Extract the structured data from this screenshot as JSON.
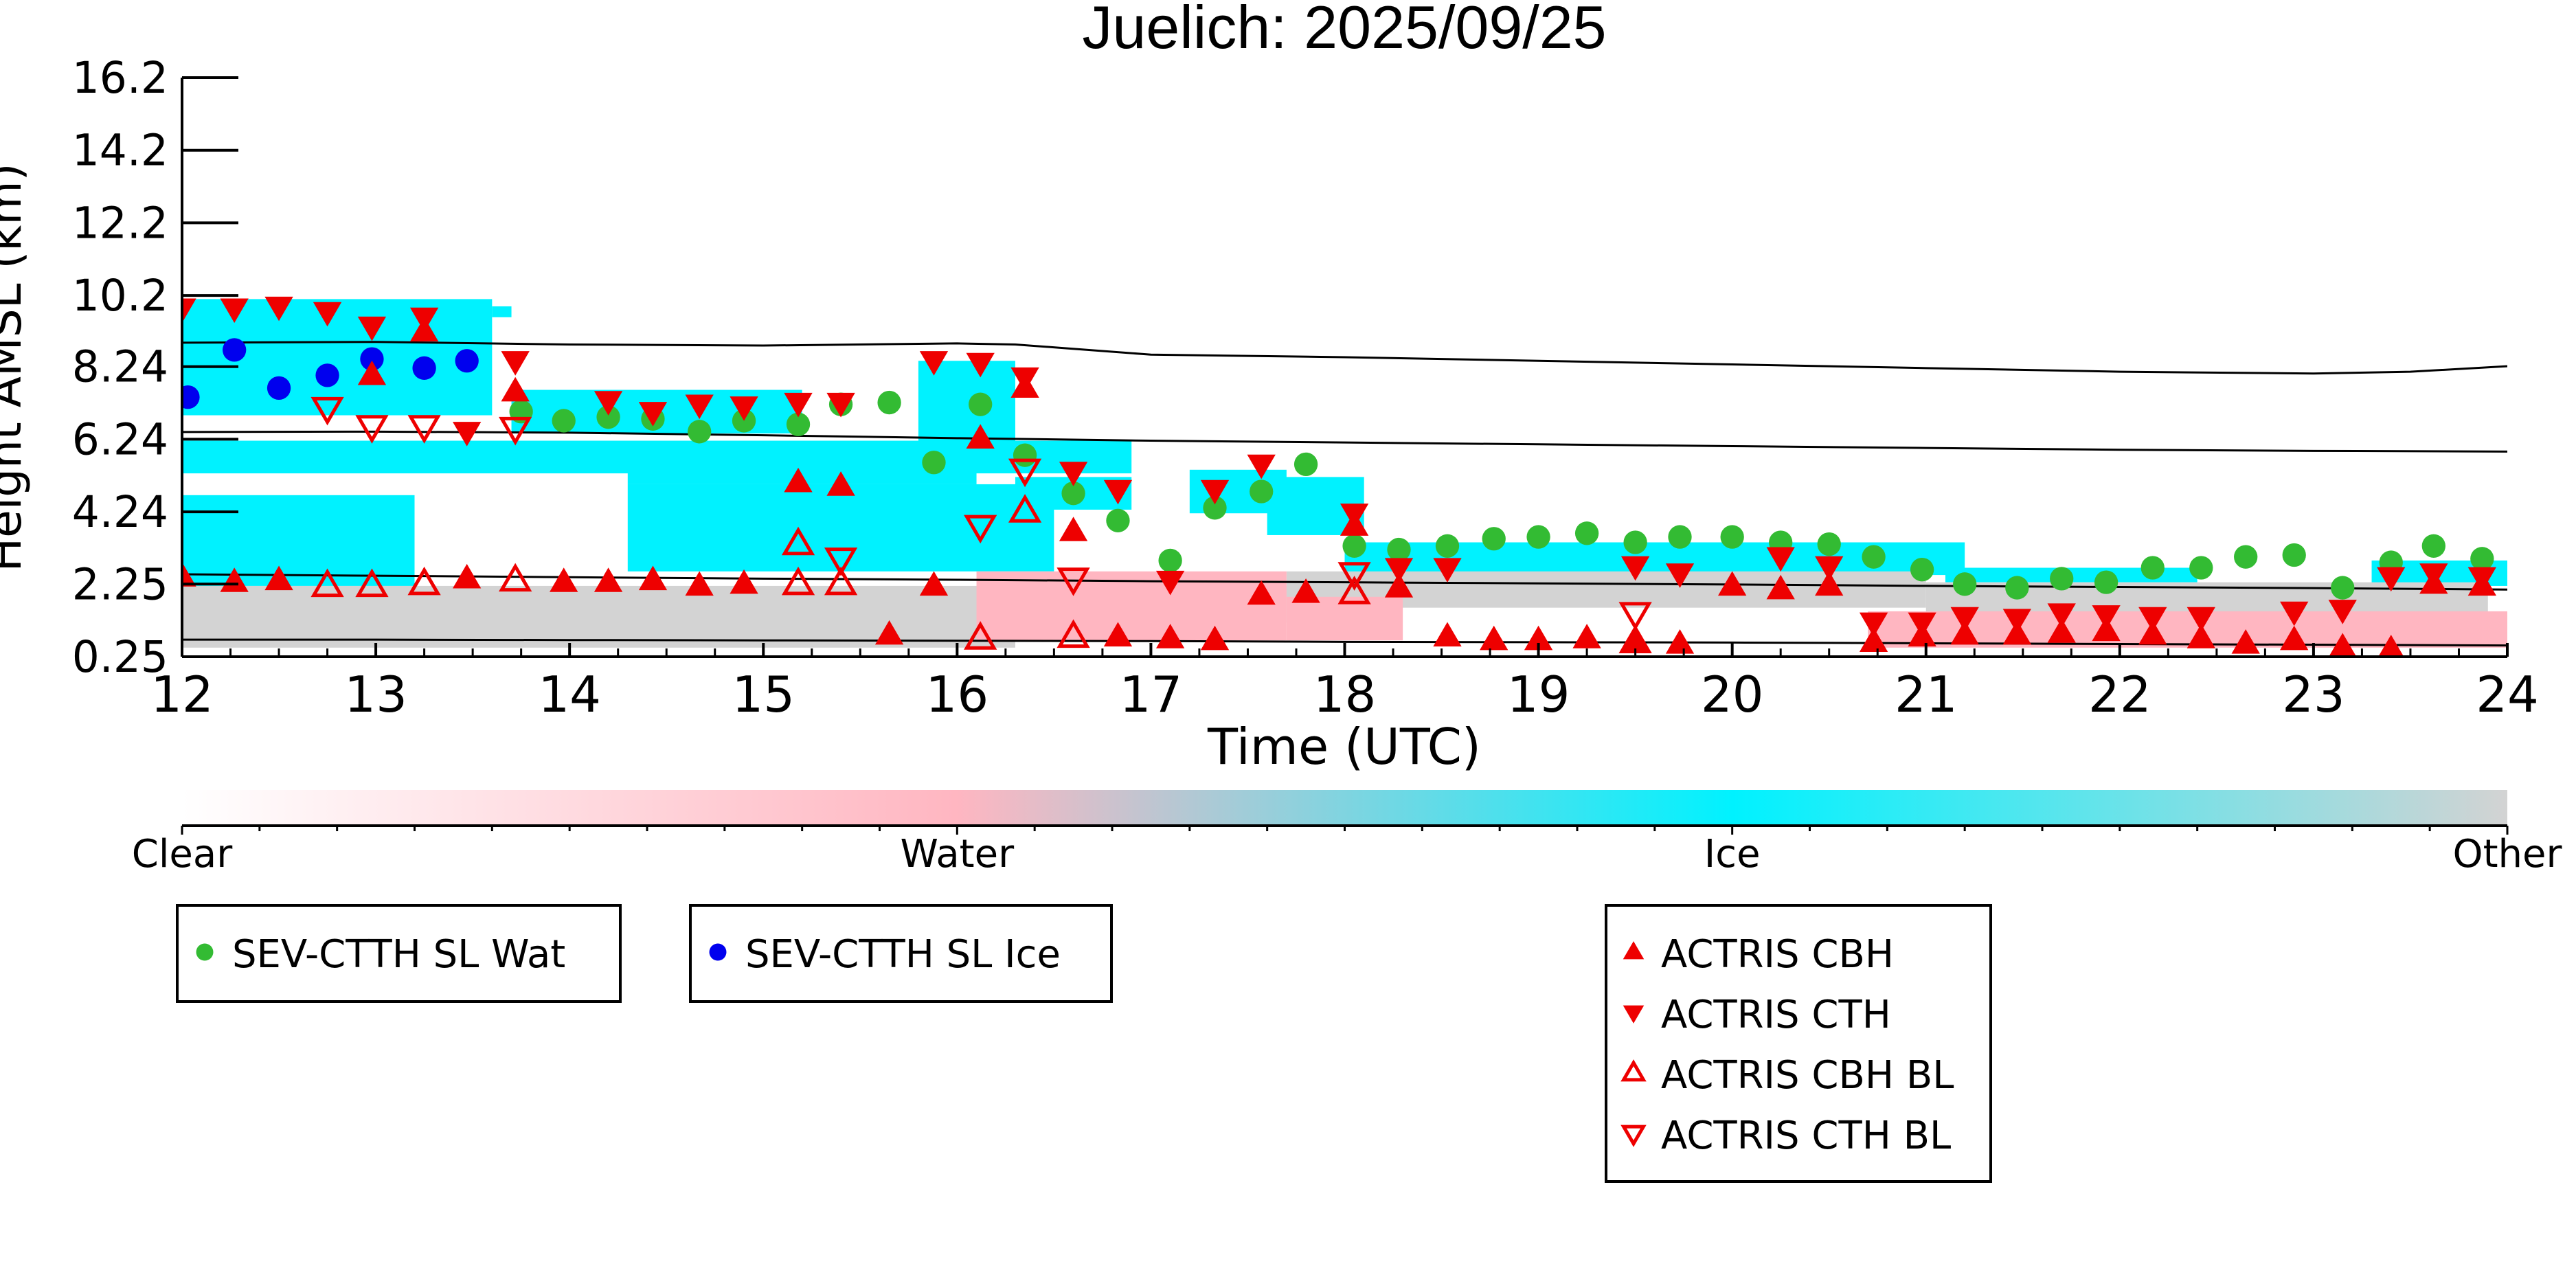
{
  "chart_data": {
    "type": "scatter",
    "title": "Juelich: 2025/09/25",
    "xlabel": "Time (UTC)",
    "ylabel": "Height AMSL (km)",
    "xlim": [
      12,
      24
    ],
    "ylim": [
      0.25,
      16.2
    ],
    "x_ticks": [
      12,
      13,
      14,
      15,
      16,
      17,
      18,
      19,
      20,
      21,
      22,
      23,
      24
    ],
    "y_ticks": [
      "0.25",
      "2.25",
      "4.24",
      "6.24",
      "8.24",
      "10.2",
      "12.2",
      "14.2",
      "16.2"
    ],
    "grid": false,
    "colorbar": {
      "labels": [
        "Clear",
        "Water",
        "Ice",
        "Other"
      ],
      "colors": [
        "#ffffff",
        "#ffb6c1",
        "#00f2ff",
        "#d3d3d3"
      ]
    },
    "background_classification": {
      "ice": [
        [
          12.0,
          2.2,
          13.2,
          4.7
        ],
        [
          12.0,
          5.3,
          16.9,
          6.2
        ],
        [
          12.0,
          6.9,
          13.6,
          10.1
        ],
        [
          13.6,
          9.6,
          13.7,
          9.9
        ],
        [
          13.7,
          6.4,
          15.2,
          7.6
        ],
        [
          14.3,
          5.0,
          16.1,
          6.0
        ],
        [
          15.8,
          6.0,
          16.3,
          8.4
        ],
        [
          14.3,
          2.6,
          16.5,
          5.0
        ],
        [
          16.3,
          4.3,
          16.9,
          5.2
        ],
        [
          17.2,
          4.2,
          17.7,
          5.4
        ],
        [
          17.6,
          3.6,
          18.1,
          5.2
        ],
        [
          18.0,
          2.5,
          21.2,
          3.4
        ],
        [
          21.1,
          2.3,
          22.4,
          2.7
        ],
        [
          23.3,
          2.2,
          24.0,
          2.9
        ]
      ],
      "other": [
        [
          12.0,
          0.5,
          16.3,
          2.2
        ],
        [
          16.3,
          1.2,
          17.7,
          2.2
        ],
        [
          17.7,
          1.6,
          21.0,
          2.6
        ],
        [
          21.0,
          0.9,
          23.9,
          2.3
        ]
      ],
      "water": [
        [
          16.1,
          0.7,
          17.7,
          2.6
        ],
        [
          17.7,
          0.7,
          18.3,
          1.9
        ],
        [
          20.7,
          0.5,
          24.0,
          1.5
        ]
      ]
    },
    "reference_lines": [
      {
        "x": [
          12,
          13,
          14,
          15,
          16,
          16.3,
          17,
          18,
          19,
          20,
          21,
          22,
          23,
          23.5,
          24
        ],
        "y": [
          8.9,
          8.92,
          8.85,
          8.82,
          8.88,
          8.85,
          8.57,
          8.5,
          8.4,
          8.3,
          8.2,
          8.1,
          8.05,
          8.1,
          8.25
        ]
      },
      {
        "x": [
          12,
          13,
          14,
          15,
          16,
          17,
          18,
          19,
          20,
          21,
          22,
          23,
          24
        ],
        "y": [
          6.44,
          6.45,
          6.42,
          6.35,
          6.27,
          6.2,
          6.15,
          6.1,
          6.05,
          6.0,
          5.95,
          5.92,
          5.9
        ]
      },
      {
        "x": [
          12,
          13,
          14,
          15,
          16,
          17,
          18,
          19,
          20,
          21,
          22,
          23,
          24
        ],
        "y": [
          2.52,
          2.48,
          2.44,
          2.4,
          2.37,
          2.33,
          2.3,
          2.27,
          2.24,
          2.2,
          2.17,
          2.14,
          2.1
        ]
      },
      {
        "x": [
          12,
          13,
          14,
          15,
          16,
          17,
          18,
          19,
          20,
          21,
          22,
          23,
          24
        ],
        "y": [
          0.72,
          0.72,
          0.71,
          0.7,
          0.69,
          0.68,
          0.66,
          0.65,
          0.64,
          0.62,
          0.6,
          0.58,
          0.56
        ]
      }
    ],
    "series": [
      {
        "name": "SEV-CTTH SL Wat",
        "marker": "circle",
        "color": "#33bb33",
        "points": [
          [
            13.75,
            7.0
          ],
          [
            13.97,
            6.75
          ],
          [
            14.2,
            6.85
          ],
          [
            14.43,
            6.8
          ],
          [
            14.67,
            6.45
          ],
          [
            14.9,
            6.75
          ],
          [
            15.18,
            6.65
          ],
          [
            15.4,
            7.2
          ],
          [
            15.65,
            7.25
          ],
          [
            15.88,
            5.6
          ],
          [
            16.12,
            7.2
          ],
          [
            16.35,
            5.8
          ],
          [
            16.6,
            4.75
          ],
          [
            16.83,
            4.0
          ],
          [
            17.1,
            2.9
          ],
          [
            17.33,
            4.35
          ],
          [
            17.57,
            4.8
          ],
          [
            17.8,
            5.55
          ],
          [
            18.05,
            3.3
          ],
          [
            18.28,
            3.2
          ],
          [
            18.53,
            3.3
          ],
          [
            18.77,
            3.5
          ],
          [
            19.0,
            3.55
          ],
          [
            19.25,
            3.65
          ],
          [
            19.5,
            3.4
          ],
          [
            19.73,
            3.55
          ],
          [
            20.0,
            3.55
          ],
          [
            20.25,
            3.4
          ],
          [
            20.5,
            3.35
          ],
          [
            20.73,
            3.0
          ],
          [
            20.98,
            2.65
          ],
          [
            21.2,
            2.25
          ],
          [
            21.47,
            2.15
          ],
          [
            21.7,
            2.4
          ],
          [
            21.93,
            2.3
          ],
          [
            22.17,
            2.7
          ],
          [
            22.42,
            2.7
          ],
          [
            22.65,
            3.0
          ],
          [
            22.9,
            3.05
          ],
          [
            23.15,
            2.15
          ],
          [
            23.4,
            2.85
          ],
          [
            23.62,
            3.3
          ],
          [
            23.87,
            2.95
          ]
        ]
      },
      {
        "name": "SEV-CTTH SL Ice",
        "marker": "circle",
        "color": "#0000ee",
        "points": [
          [
            12.03,
            7.4
          ],
          [
            12.27,
            8.7
          ],
          [
            12.5,
            7.65
          ],
          [
            12.75,
            8.0
          ],
          [
            12.98,
            8.45
          ],
          [
            13.25,
            8.2
          ],
          [
            13.47,
            8.4
          ]
        ]
      },
      {
        "name": "ACTRIS CBH",
        "marker": "triangle-up",
        "color": "#ee0000",
        "filled": true,
        "points": [
          [
            12.0,
            2.45
          ],
          [
            12.27,
            2.3
          ],
          [
            12.5,
            2.35
          ],
          [
            12.98,
            8.0
          ],
          [
            13.25,
            9.2
          ],
          [
            13.47,
            2.4
          ],
          [
            13.72,
            7.55
          ],
          [
            13.97,
            2.3
          ],
          [
            14.2,
            2.3
          ],
          [
            14.43,
            2.35
          ],
          [
            14.67,
            2.2
          ],
          [
            14.9,
            2.25
          ],
          [
            15.18,
            5.05
          ],
          [
            15.4,
            4.95
          ],
          [
            15.65,
            0.85
          ],
          [
            15.88,
            2.2
          ],
          [
            16.12,
            6.25
          ],
          [
            16.35,
            7.65
          ],
          [
            16.6,
            3.7
          ],
          [
            16.83,
            0.8
          ],
          [
            17.1,
            0.75
          ],
          [
            17.33,
            0.7
          ],
          [
            17.57,
            1.95
          ],
          [
            17.8,
            2.0
          ],
          [
            18.05,
            3.85
          ],
          [
            18.28,
            2.15
          ],
          [
            18.53,
            0.8
          ],
          [
            18.77,
            0.7
          ],
          [
            19.0,
            0.7
          ],
          [
            19.25,
            0.75
          ],
          [
            19.5,
            0.7
          ],
          [
            19.73,
            0.6
          ],
          [
            20.0,
            2.2
          ],
          [
            20.25,
            2.1
          ],
          [
            20.5,
            2.2
          ],
          [
            20.73,
            0.65
          ],
          [
            20.98,
            0.8
          ],
          [
            21.2,
            0.85
          ],
          [
            21.47,
            0.85
          ],
          [
            21.7,
            0.9
          ],
          [
            21.93,
            0.95
          ],
          [
            22.17,
            0.85
          ],
          [
            22.42,
            0.75
          ],
          [
            22.65,
            0.6
          ],
          [
            22.9,
            0.7
          ],
          [
            23.15,
            0.5
          ],
          [
            23.4,
            0.45
          ],
          [
            23.62,
            2.25
          ],
          [
            23.87,
            2.2
          ]
        ]
      },
      {
        "name": "ACTRIS CTH",
        "marker": "triangle-down",
        "color": "#ee0000",
        "filled": true,
        "points": [
          [
            12.0,
            9.85
          ],
          [
            12.27,
            9.85
          ],
          [
            12.5,
            9.9
          ],
          [
            12.75,
            9.75
          ],
          [
            12.98,
            9.35
          ],
          [
            13.25,
            9.6
          ],
          [
            13.47,
            6.45
          ],
          [
            13.72,
            8.4
          ],
          [
            14.2,
            7.3
          ],
          [
            14.43,
            7.0
          ],
          [
            14.67,
            7.2
          ],
          [
            14.9,
            7.15
          ],
          [
            15.18,
            7.25
          ],
          [
            15.4,
            7.25
          ],
          [
            15.88,
            8.4
          ],
          [
            16.12,
            8.35
          ],
          [
            16.35,
            7.95
          ],
          [
            16.6,
            5.35
          ],
          [
            16.83,
            4.85
          ],
          [
            17.1,
            2.35
          ],
          [
            17.33,
            4.85
          ],
          [
            17.57,
            5.55
          ],
          [
            18.05,
            4.2
          ],
          [
            18.28,
            2.7
          ],
          [
            18.53,
            2.7
          ],
          [
            19.5,
            2.75
          ],
          [
            19.73,
            2.55
          ],
          [
            20.25,
            3.0
          ],
          [
            20.5,
            2.75
          ],
          [
            20.73,
            1.2
          ],
          [
            20.98,
            1.2
          ],
          [
            21.2,
            1.35
          ],
          [
            21.47,
            1.3
          ],
          [
            21.7,
            1.45
          ],
          [
            21.93,
            1.4
          ],
          [
            22.17,
            1.35
          ],
          [
            22.42,
            1.35
          ],
          [
            22.9,
            1.5
          ],
          [
            23.15,
            1.55
          ],
          [
            23.4,
            2.45
          ],
          [
            23.62,
            2.55
          ],
          [
            23.87,
            2.45
          ]
        ]
      },
      {
        "name": "ACTRIS CBH BL",
        "marker": "triangle-up",
        "color": "#ee0000",
        "filled": false,
        "points": [
          [
            12.75,
            2.2
          ],
          [
            12.98,
            2.2
          ],
          [
            13.25,
            2.25
          ],
          [
            13.72,
            2.35
          ],
          [
            15.18,
            3.35
          ],
          [
            15.18,
            2.25
          ],
          [
            15.4,
            2.25
          ],
          [
            16.12,
            0.75
          ],
          [
            16.35,
            4.25
          ],
          [
            16.6,
            0.8
          ],
          [
            18.05,
            2.0
          ],
          [
            19.5,
            0.65
          ]
        ]
      },
      {
        "name": "ACTRIS CTH BL",
        "marker": "triangle-down",
        "color": "#ee0000",
        "filled": false,
        "points": [
          [
            12.75,
            7.1
          ],
          [
            12.98,
            6.6
          ],
          [
            13.25,
            6.6
          ],
          [
            13.72,
            6.55
          ],
          [
            15.4,
            2.95
          ],
          [
            16.12,
            3.85
          ],
          [
            16.35,
            5.4
          ],
          [
            16.6,
            2.4
          ],
          [
            18.05,
            2.55
          ],
          [
            19.5,
            1.45
          ]
        ]
      }
    ],
    "legends": [
      {
        "entries": [
          "SEV-CTTH SL Wat"
        ]
      },
      {
        "entries": [
          "SEV-CTTH SL Ice"
        ]
      },
      {
        "entries": [
          "ACTRIS CBH",
          "ACTRIS CTH",
          "ACTRIS CBH BL",
          "ACTRIS CTH BL"
        ]
      }
    ]
  }
}
